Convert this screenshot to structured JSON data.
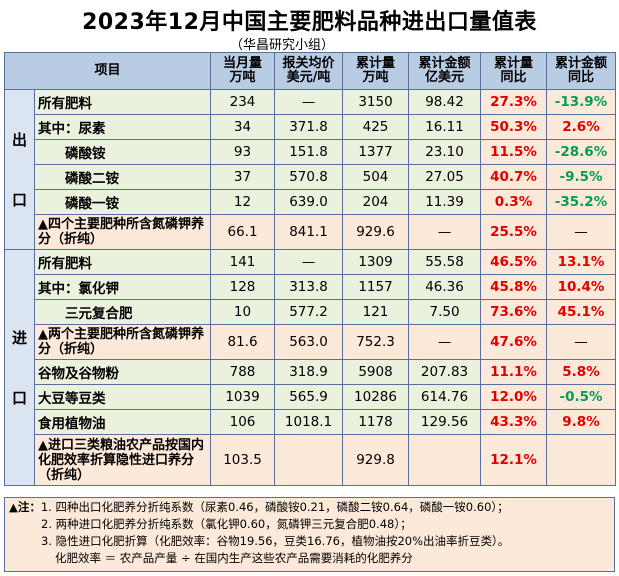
{
  "title": "2023年12月中国主要肥料品种进出口量值表",
  "subtitle": "（华昌研究小组）",
  "headers": {
    "item": "项目",
    "c1": [
      "当月量",
      "万吨"
    ],
    "c2": [
      "报关均价",
      "美元/吨"
    ],
    "c3": [
      "累计量",
      "万吨"
    ],
    "c4": [
      "累计金额",
      "亿美元"
    ],
    "c5": [
      "累计量",
      "同比"
    ],
    "c6": [
      "累计金额",
      "同比"
    ]
  },
  "export_label": "出\n\n口",
  "import_label": "进\n\n口",
  "export_rows": [
    {
      "label": "所有肥料",
      "v": [
        "234",
        "—",
        "3150",
        "98.42",
        "27.3%",
        "-13.9%"
      ]
    },
    {
      "label": "其中：尿素",
      "v": [
        "34",
        "371.8",
        "425",
        "16.11",
        "50.3%",
        "2.6%"
      ]
    },
    {
      "label": "磷酸铵",
      "v": [
        "93",
        "151.8",
        "1377",
        "23.10",
        "11.5%",
        "-28.6%"
      ]
    },
    {
      "label": "磷酸二铵",
      "v": [
        "37",
        "570.8",
        "504",
        "27.05",
        "40.7%",
        "-9.5%"
      ]
    },
    {
      "label": "磷酸一铵",
      "v": [
        "12",
        "639.0",
        "204",
        "11.39",
        "0.3%",
        "-35.2%"
      ]
    },
    {
      "label": "▲四个主要肥种所含氮磷钾养分（折纯）",
      "v": [
        "66.1",
        "841.1",
        "929.6",
        "—",
        "25.5%",
        "—"
      ]
    }
  ],
  "import_rows": [
    {
      "label": "所有肥料",
      "v": [
        "141",
        "—",
        "1309",
        "55.58",
        "46.5%",
        "13.1%"
      ]
    },
    {
      "label": "其中：氯化钾",
      "v": [
        "128",
        "313.8",
        "1157",
        "46.36",
        "45.8%",
        "10.4%"
      ]
    },
    {
      "label": "三元复合肥",
      "v": [
        "10",
        "577.2",
        "121",
        "7.50",
        "73.6%",
        "45.1%"
      ]
    },
    {
      "label": "▲两个主要肥种所含氮磷钾养分（折纯）",
      "v": [
        "81.6",
        "563.0",
        "752.3",
        "—",
        "47.6%",
        "—"
      ]
    },
    {
      "label": "谷物及谷物粉",
      "v": [
        "788",
        "318.9",
        "5908",
        "207.83",
        "11.1%",
        "5.8%"
      ]
    },
    {
      "label": "大豆等豆类",
      "v": [
        "1039",
        "565.9",
        "10286",
        "614.76",
        "12.0%",
        "-0.5%"
      ]
    },
    {
      "label": "食用植物油",
      "v": [
        "106",
        "1018.1",
        "1178",
        "129.56",
        "43.3%",
        "9.8%"
      ]
    },
    {
      "label": "▲进口三类粮油农产品按国内化肥效率折算隐性进口养分（折纯）",
      "v": [
        "103.5",
        "",
        "929.8",
        "",
        "12.1%",
        ""
      ]
    }
  ],
  "notes": {
    "head": "▲注：",
    "line1": "1. 四种出口化肥养分折纯系数（尿素0.46，磷酸铵0.21，磷酸二铵0.64，磷酸一铵0.60）；",
    "line2": "2. 两种进口化肥养分折纯系数（氯化钾0.60，氮磷钾三元复合肥0.48）；",
    "line3": "3. 隐性进口化肥折算（化肥效率：谷物19.56，豆类16.76，植物油按20%出油率折豆类）。",
    "line4": "化肥效率 ＝ 农产品产量 ÷ 在国内生产这些农产品需要消耗的化肥养分"
  },
  "colors": {
    "positive": "#e00000",
    "negative": "#00a050",
    "header_bg": "#b8cce4",
    "value_bg": "#eaf1dd",
    "pct_bg": "#fde9d9"
  }
}
